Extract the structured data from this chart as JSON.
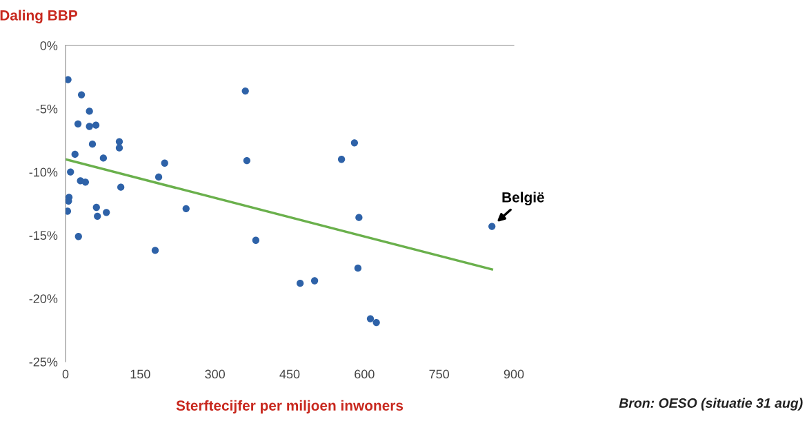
{
  "chart_data": {
    "type": "scatter",
    "ylabel": "Daling BBP",
    "xlabel": "Sterftecijfer per miljoen inwoners",
    "xlim": [
      0,
      900
    ],
    "xticks": [
      0,
      150,
      300,
      450,
      600,
      750,
      900
    ],
    "ylim": [
      -25,
      0
    ],
    "yticks": [
      {
        "value": 0,
        "label": "0%"
      },
      {
        "value": -5,
        "label": "-5%"
      },
      {
        "value": -10,
        "label": "-10%"
      },
      {
        "value": -15,
        "label": "-15%"
      },
      {
        "value": -20,
        "label": "-20%"
      },
      {
        "value": -25,
        "label": "-25%"
      }
    ],
    "grid": false,
    "legend": false,
    "series": [
      {
        "marker": "circle",
        "color": "#2e62a8",
        "x": [
          5,
          32,
          48,
          25,
          48,
          61,
          54,
          108,
          108,
          19,
          76,
          199,
          10,
          30,
          40,
          187,
          111,
          7,
          6,
          4,
          62,
          64,
          82,
          242,
          26,
          180,
          361,
          364,
          382,
          554,
          580,
          589,
          587,
          471,
          500,
          612,
          624,
          856
        ],
        "values": [
          -2.7,
          -3.9,
          -5.2,
          -6.2,
          -6.4,
          -6.3,
          -7.8,
          -7.6,
          -8.1,
          -8.6,
          -8.9,
          -9.3,
          -10.0,
          -10.7,
          -10.8,
          -10.4,
          -11.2,
          -12.0,
          -12.3,
          -13.1,
          -12.8,
          -13.5,
          -13.2,
          -12.9,
          -15.1,
          -16.2,
          -3.6,
          -9.1,
          -15.4,
          -9.0,
          -7.7,
          -13.6,
          -17.6,
          -18.8,
          -18.6,
          -21.6,
          -21.9,
          -14.3
        ]
      },
      {
        "type": "line",
        "color": "#6ab04c",
        "x": [
          0,
          856
        ],
        "values": [
          -9.0,
          -17.7
        ]
      }
    ],
    "annotations": [
      {
        "text": "België",
        "x": 856,
        "y": -14.3
      },
      "Bron: OESO (situatie 31 aug)"
    ]
  }
}
